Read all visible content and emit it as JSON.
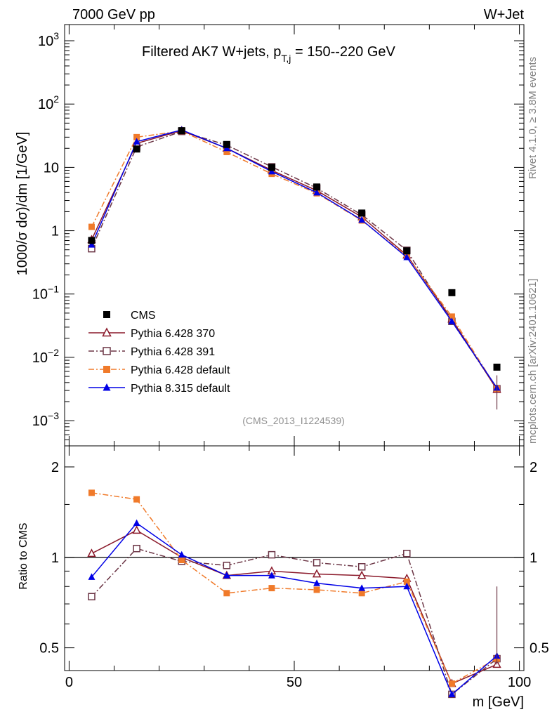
{
  "header": {
    "left": "7000 GeV pp",
    "right": "W+Jet"
  },
  "side_labels": {
    "rivet": "Rivet 4.1.0, ≥ 3.8M events",
    "mcplots": "mcplots.cern.ch [arXiv:2401.10621]"
  },
  "chart_data": [
    {
      "type": "line",
      "panel": "main",
      "title_main": "Filtered AK7 W+jets, p",
      "title_sub": "T,j",
      "title_rest": " = 150--220 GeV",
      "ylabel": "1000/σ  dσ)/dm [1/GeV]",
      "xlabel": "m [GeV]",
      "yscale": "log",
      "ylim": [
        0.0004,
        1800
      ],
      "xlim": [
        -1,
        101
      ],
      "x_ticks": [
        "0",
        "50",
        "100"
      ],
      "y_ticks": [
        {
          "base": "10",
          "exp": "−3"
        },
        {
          "base": "10",
          "exp": "−2"
        },
        {
          "base": "10",
          "exp": "−1"
        },
        {
          "base": "1",
          "exp": ""
        },
        {
          "base": "10",
          "exp": ""
        },
        {
          "base": "10",
          "exp": "2"
        },
        {
          "base": "10",
          "exp": "3"
        }
      ],
      "annotation": "(CMS_2013_I1224539)",
      "x": [
        5,
        15,
        25,
        35,
        45,
        55,
        65,
        75,
        85,
        95
      ],
      "series": [
        {
          "name": "CMS",
          "color": "#000000",
          "marker": "filled-square",
          "line": "none",
          "values": [
            0.7,
            19.5,
            38,
            23,
            10,
            4.9,
            1.9,
            0.48,
            0.105,
            0.007
          ]
        },
        {
          "name": "Pythia 6.428 370",
          "color": "#8b1a2b",
          "marker": "open-triangle",
          "line": "solid",
          "values": [
            0.72,
            24,
            38,
            20,
            9,
            4.3,
            1.65,
            0.41,
            0.04,
            0.0031
          ]
        },
        {
          "name": "Pythia 6.428 391",
          "color": "#6b3545",
          "marker": "open-square",
          "line": "dashdot",
          "values": [
            0.52,
            21,
            37,
            22.5,
            10.2,
            4.7,
            1.78,
            0.49,
            0.037,
            0.0032
          ]
        },
        {
          "name": "Pythia 6.428 default",
          "color": "#f07a2a",
          "marker": "filled-square",
          "line": "dashdot",
          "values": [
            1.15,
            30,
            37.5,
            17.5,
            7.9,
            3.9,
            1.45,
            0.4,
            0.044,
            0.0032
          ]
        },
        {
          "name": "Pythia 8.315 default",
          "color": "#0000e6",
          "marker": "filled-triangle",
          "line": "solid",
          "values": [
            0.6,
            25.5,
            39,
            20,
            8.6,
            4.0,
            1.48,
            0.38,
            0.037,
            0.0033
          ]
        }
      ]
    },
    {
      "type": "line",
      "panel": "ratio",
      "ylabel": "Ratio to CMS",
      "yscale": "log",
      "ylim": [
        0.42,
        2.35
      ],
      "y_ticks": [
        "0.5",
        "1",
        "2"
      ],
      "reference_line": 1,
      "x": [
        5,
        15,
        25,
        35,
        45,
        55,
        65,
        75,
        85,
        95
      ],
      "series": [
        {
          "name": "Pythia 6.428 370",
          "color": "#8b1a2b",
          "values": [
            1.03,
            1.23,
            1.0,
            0.87,
            0.9,
            0.88,
            0.87,
            0.85,
            0.38,
            0.44
          ]
        },
        {
          "name": "Pythia 6.428 391",
          "color": "#6b3545",
          "values": [
            0.74,
            1.07,
            0.97,
            0.94,
            1.02,
            0.96,
            0.93,
            1.03,
            0.35,
            0.46
          ]
        },
        {
          "name": "Pythia 6.428 default",
          "color": "#f07a2a",
          "values": [
            1.64,
            1.56,
            0.98,
            0.76,
            0.79,
            0.78,
            0.76,
            0.83,
            0.38,
            0.46
          ]
        },
        {
          "name": "Pythia 8.315 default",
          "color": "#0000e6",
          "values": [
            0.86,
            1.3,
            1.02,
            0.87,
            0.87,
            0.82,
            0.79,
            0.8,
            0.35,
            0.47
          ]
        }
      ]
    }
  ]
}
